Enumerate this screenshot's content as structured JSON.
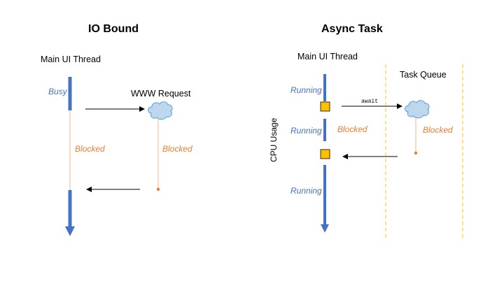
{
  "left_panel": {
    "title": "IO Bound",
    "thread_label": "Main UI Thread",
    "busy_label": "Busy",
    "request_label": "WWW Request",
    "blocked_main": "Blocked",
    "blocked_request": "Blocked"
  },
  "right_panel": {
    "title": "Async Task",
    "thread_label": "Main UI Thread",
    "queue_label": "Task Queue",
    "cpu_label": "CPU Usage",
    "running_1": "Running",
    "running_2": "Running",
    "running_3": "Running",
    "blocked_main": "Blocked",
    "blocked_queue": "Blocked",
    "await_label": "await"
  },
  "colors": {
    "thread_blue": "#4472C4",
    "blocked_orange": "#ED7D31",
    "marker_yellow": "#FFC000",
    "cloud_fill": "#BDD7EE",
    "cloud_stroke": "#5B9BD5"
  },
  "icons": {
    "cloud": "cloud-icon",
    "task_marker": "square-marker-icon"
  }
}
